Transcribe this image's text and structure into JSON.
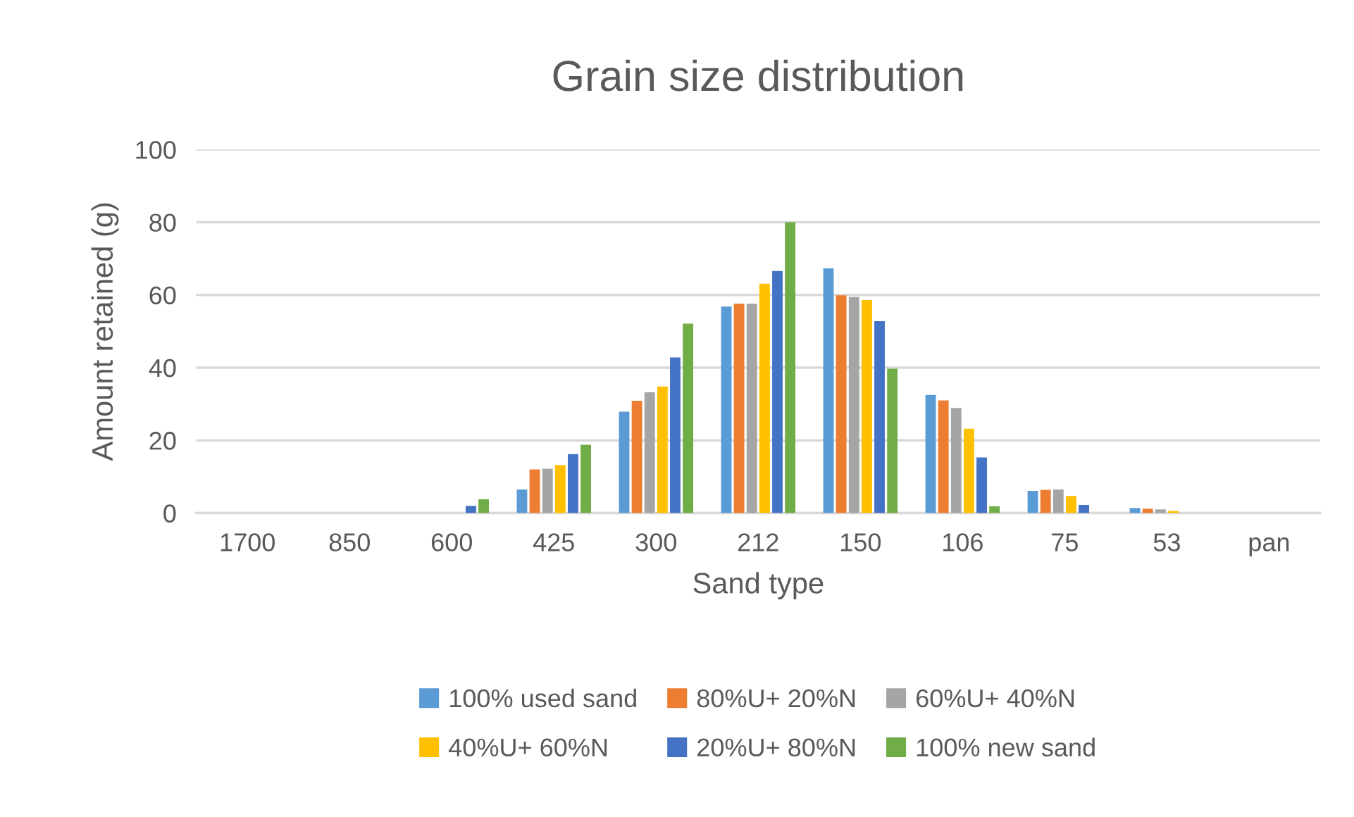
{
  "chart_data": {
    "type": "bar",
    "title": "Grain size distribution",
    "xlabel": "Sand type",
    "ylabel": "Amount retained (g)",
    "categories": [
      "1700",
      "850",
      "600",
      "425",
      "300",
      "212",
      "150",
      "106",
      "75",
      "53",
      "pan"
    ],
    "series": [
      {
        "name": "100% used sand",
        "color": "#5b9bd5",
        "values": [
          0,
          0,
          0,
          6.5,
          27.9,
          56.8,
          67.3,
          32.5,
          6.1,
          1.4,
          0
        ]
      },
      {
        "name": "80%U+ 20%N",
        "color": "#ed7d31",
        "values": [
          0,
          0,
          null,
          12,
          30.9,
          57.6,
          59.9,
          31.0,
          6.4,
          1.2,
          0
        ]
      },
      {
        "name": "60%U+ 40%N",
        "color": "#a5a5a5",
        "values": [
          0,
          null,
          0,
          12.2,
          33.2,
          57.6,
          59.4,
          28.9,
          6.5,
          1.0,
          0
        ]
      },
      {
        "name": "40%U+ 60%N",
        "color": "#ffc000",
        "values": [
          0,
          null,
          0,
          13.2,
          34.8,
          63.1,
          58.6,
          23.2,
          4.7,
          0.6,
          0
        ]
      },
      {
        "name": "20%U+ 80%N",
        "color": "#4472c4",
        "values": [
          0,
          0,
          2,
          16.2,
          42.8,
          66.6,
          52.8,
          15.3,
          2.2,
          0,
          null
        ]
      },
      {
        "name": "100% new sand",
        "color": "#70ad47",
        "values": [
          0,
          0,
          3.8,
          18.8,
          52.1,
          80,
          39.7,
          1.9,
          0,
          0,
          0
        ]
      }
    ],
    "ylim": [
      0,
      100
    ],
    "yticks": [
      0,
      20,
      40,
      60,
      80,
      100
    ],
    "grid": "y",
    "legend": "bottom"
  }
}
